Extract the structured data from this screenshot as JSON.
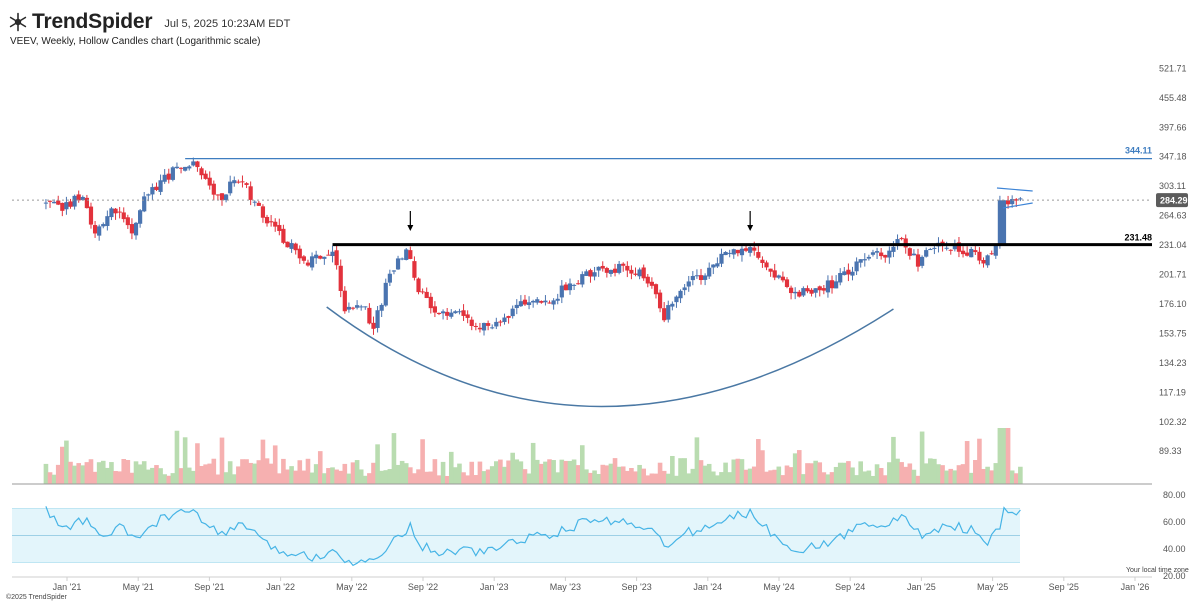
{
  "app": {
    "brand": "TrendSpider",
    "timestamp": "Jul 5, 2025 10:23AM EDT",
    "copyright": "©2025 TrendSpider",
    "timezone_note": "Your local time zone"
  },
  "colors": {
    "up": "#4a74b0",
    "down": "#e2323c",
    "vol_up": "#b9dcb0",
    "vol_down": "#f6b0b0",
    "rsi_line": "#46b4e6",
    "rsi_band": "#e3f5fb",
    "resistance_line": "#3e7dc0",
    "support_line": "#000000",
    "pattern_curve": "#4a78a4",
    "last_price_badge": "#5c5c5c"
  },
  "chart_data": {
    "type": "candlestick",
    "title": "VEEV, Weekly, Hollow Candles chart (Logarithmic scale)",
    "symbol": "VEEV",
    "interval": "Weekly",
    "scale": "log",
    "grid": false,
    "x_ticks": [
      "Jan '21",
      "May '21",
      "Sep '21",
      "Jan '22",
      "May '22",
      "Sep '22",
      "Jan '23",
      "May '23",
      "Sep '23",
      "Jan '24",
      "May '24",
      "Sep '24",
      "Jan '25",
      "May '25",
      "Sep '25",
      "Jan '26"
    ],
    "y_ticks": [
      "521.71",
      "455.48",
      "397.66",
      "347.18",
      "303.11",
      "264.63",
      "231.04",
      "201.71",
      "176.10",
      "153.75",
      "134.23",
      "117.19",
      "102.32",
      "89.33"
    ],
    "ylim": [
      85,
      560
    ],
    "levels": [
      {
        "label": "344.11",
        "value": 344.11,
        "style": "resistance"
      },
      {
        "label": "231.48",
        "value": 231.48,
        "style": "support"
      }
    ],
    "last_price": {
      "label": "284.29",
      "value": 284.29
    },
    "price_path": [
      [
        "2020-12-07",
        282
      ],
      [
        "2021-01-04",
        272
      ],
      [
        "2021-02-15",
        290
      ],
      [
        "2021-03-08",
        244
      ],
      [
        "2021-04-12",
        275
      ],
      [
        "2021-05-10",
        246
      ],
      [
        "2021-06-07",
        295
      ],
      [
        "2021-07-05",
        315
      ],
      [
        "2021-08-09",
        340
      ],
      [
        "2021-09-06",
        322
      ],
      [
        "2021-10-04",
        285
      ],
      [
        "2021-11-08",
        318
      ],
      [
        "2021-12-13",
        275
      ],
      [
        "2022-01-17",
        240
      ],
      [
        "2022-03-07",
        215
      ],
      [
        "2022-04-18",
        228
      ],
      [
        "2022-05-09",
        172
      ],
      [
        "2022-06-06",
        175
      ],
      [
        "2022-06-27",
        160
      ],
      [
        "2022-07-25",
        200
      ],
      [
        "2022-08-22",
        229
      ],
      [
        "2022-09-12",
        186
      ],
      [
        "2022-10-17",
        167
      ],
      [
        "2022-11-21",
        172
      ],
      [
        "2022-12-19",
        160
      ],
      [
        "2023-01-23",
        163
      ],
      [
        "2023-03-06",
        174
      ],
      [
        "2023-05-01",
        182
      ],
      [
        "2023-06-05",
        195
      ],
      [
        "2023-07-03",
        205
      ],
      [
        "2023-08-21",
        208
      ],
      [
        "2023-10-02",
        203
      ],
      [
        "2023-11-06",
        167
      ],
      [
        "2023-12-04",
        192
      ],
      [
        "2024-01-15",
        203
      ],
      [
        "2024-03-04",
        226
      ],
      [
        "2024-03-25",
        231
      ],
      [
        "2024-04-29",
        209
      ],
      [
        "2024-06-10",
        186
      ],
      [
        "2024-07-22",
        187
      ],
      [
        "2024-09-02",
        198
      ],
      [
        "2024-10-07",
        215
      ],
      [
        "2024-11-18",
        222
      ],
      [
        "2024-12-09",
        240
      ],
      [
        "2025-01-13",
        215
      ],
      [
        "2025-02-24",
        232
      ],
      [
        "2025-04-07",
        225
      ],
      [
        "2025-05-05",
        215
      ],
      [
        "2025-05-26",
        231
      ],
      [
        "2025-06-02",
        280
      ],
      [
        "2025-07-04",
        284
      ]
    ],
    "annotations": [
      {
        "type": "arrow-down",
        "date": "2022-08-22"
      },
      {
        "type": "arrow-down",
        "date": "2024-03-25"
      },
      {
        "type": "rounding-bottom-curve",
        "from": "2022-04-01",
        "to": "2024-11-25"
      },
      {
        "type": "pennant",
        "from": "2025-06-02",
        "to": "2025-07-21"
      }
    ],
    "rsi": {
      "y_ticks": [
        "80.00",
        "60.00",
        "40.00",
        "20.00"
      ],
      "ylim": [
        20,
        80
      ],
      "band": [
        30,
        70
      ],
      "midline": 50,
      "path": [
        [
          "2020-12-07",
          69
        ],
        [
          "2021-01-04",
          55
        ],
        [
          "2021-02-15",
          62
        ],
        [
          "2021-03-08",
          48
        ],
        [
          "2021-04-12",
          56
        ],
        [
          "2021-05-10",
          47
        ],
        [
          "2021-06-07",
          58
        ],
        [
          "2021-07-05",
          65
        ],
        [
          "2021-08-09",
          68
        ],
        [
          "2021-09-06",
          59
        ],
        [
          "2021-10-04",
          50
        ],
        [
          "2021-11-08",
          60
        ],
        [
          "2021-12-13",
          44
        ],
        [
          "2022-01-17",
          38
        ],
        [
          "2022-03-07",
          34
        ],
        [
          "2022-04-18",
          40
        ],
        [
          "2022-05-09",
          30
        ],
        [
          "2022-06-06",
          33
        ],
        [
          "2022-06-27",
          30
        ],
        [
          "2022-07-25",
          48
        ],
        [
          "2022-08-22",
          57
        ],
        [
          "2022-09-12",
          42
        ],
        [
          "2022-10-17",
          37
        ],
        [
          "2022-11-21",
          40
        ],
        [
          "2022-12-19",
          37
        ],
        [
          "2023-01-23",
          42
        ],
        [
          "2023-03-06",
          48
        ],
        [
          "2023-05-01",
          52
        ],
        [
          "2023-06-05",
          58
        ],
        [
          "2023-07-03",
          62
        ],
        [
          "2023-08-21",
          60
        ],
        [
          "2023-10-02",
          57
        ],
        [
          "2023-11-06",
          40
        ],
        [
          "2023-12-04",
          52
        ],
        [
          "2024-01-15",
          56
        ],
        [
          "2024-03-04",
          65
        ],
        [
          "2024-03-25",
          67
        ],
        [
          "2024-04-29",
          52
        ],
        [
          "2024-06-10",
          40
        ],
        [
          "2024-07-22",
          42
        ],
        [
          "2024-09-02",
          50
        ],
        [
          "2024-10-07",
          60
        ],
        [
          "2024-11-18",
          58
        ],
        [
          "2024-12-09",
          64
        ],
        [
          "2025-01-13",
          50
        ],
        [
          "2025-02-24",
          58
        ],
        [
          "2025-04-07",
          54
        ],
        [
          "2025-05-05",
          44
        ],
        [
          "2025-05-26",
          55
        ],
        [
          "2025-06-02",
          68
        ],
        [
          "2025-07-04",
          67
        ]
      ]
    }
  }
}
